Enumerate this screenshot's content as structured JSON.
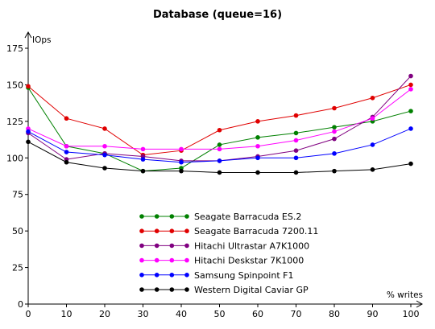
{
  "chart_data": {
    "type": "line",
    "title": "Database (queue=16)",
    "ylabel": "IOps",
    "xlabel": "% writes",
    "x": [
      0,
      10,
      20,
      30,
      40,
      50,
      60,
      70,
      80,
      90,
      100
    ],
    "xlim": [
      0,
      100
    ],
    "ylim": [
      0,
      175
    ],
    "yticks": [
      0,
      25,
      50,
      75,
      100,
      125,
      150,
      175
    ],
    "grid": false,
    "legend_position": "lower-left inside plot",
    "series": [
      {
        "name": "Seagate Barracuda ES.2",
        "color": "#008000",
        "values": [
          148,
          108,
          103,
          91,
          93,
          109,
          114,
          117,
          121,
          125,
          132
        ]
      },
      {
        "name": "Seagate Barracuda 7200.11",
        "color": "#e00000",
        "values": [
          149,
          127,
          120,
          102,
          105,
          119,
          125,
          129,
          134,
          141,
          150
        ]
      },
      {
        "name": "Hitachi Ultrastar A7K1000",
        "color": "#800080",
        "values": [
          117,
          99,
          103,
          101,
          98,
          98,
          101,
          105,
          113,
          128,
          156
        ]
      },
      {
        "name": "Hitachi Deskstar 7K1000",
        "color": "#ff00ff",
        "values": [
          120,
          108,
          108,
          106,
          106,
          106,
          108,
          112,
          118,
          127,
          147
        ]
      },
      {
        "name": "Samsung Spinpoint F1",
        "color": "#0000ff",
        "values": [
          118,
          104,
          102,
          99,
          97,
          98,
          100,
          100,
          103,
          109,
          120
        ]
      },
      {
        "name": "Western Digital Caviar GP",
        "color": "#000000",
        "values": [
          111,
          97,
          93,
          91,
          91,
          90,
          90,
          90,
          91,
          92,
          96
        ]
      }
    ]
  }
}
